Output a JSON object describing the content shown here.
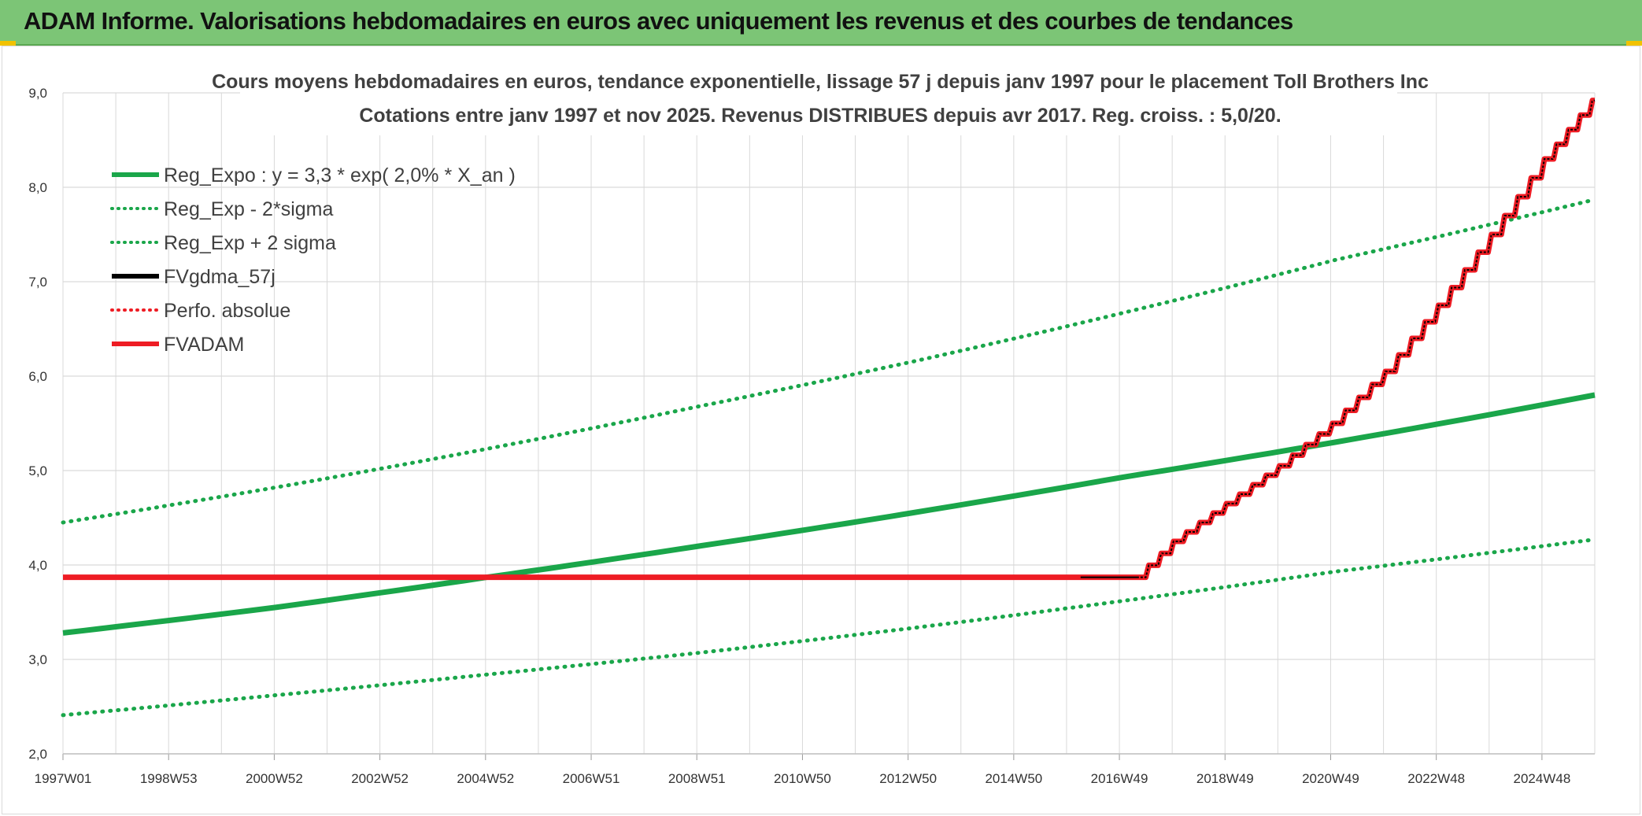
{
  "header": {
    "title": "ADAM Informe. Valorisations hebdomadaires en euros avec uniquement les revenus et des courbes de tendances"
  },
  "colors": {
    "banner": "#7cc576",
    "green": "#1aa64a",
    "red": "#ee1c24",
    "black": "#000000",
    "grid": "#d9d9d9"
  },
  "chart_data": {
    "type": "line",
    "title_line1": "Cours moyens hebdomadaires en euros, tendance exponentielle, lissage 57 j depuis janv 1997 pour le placement Toll Brothers Inc",
    "title_line2": "Cotations entre janv 1997 et nov 2025. Revenus DISTRIBUES depuis avr 2017. Reg. croiss. : 5,0/20.",
    "xlabel": "",
    "ylabel": "",
    "xlim": [
      1997.0,
      2025.9
    ],
    "ylim": [
      2.0,
      9.0
    ],
    "y_ticks": [
      "2,0",
      "3,0",
      "4,0",
      "5,0",
      "6,0",
      "7,0",
      "8,0",
      "9,0"
    ],
    "x_tick_labels": [
      "1997W01",
      "1998W53",
      "2000W52",
      "2002W52",
      "2004W52",
      "2006W51",
      "2008W51",
      "2010W50",
      "2012W50",
      "2014W50",
      "2016W49",
      "2018W49",
      "2020W49",
      "2022W48",
      "2024W48"
    ],
    "legend": [
      {
        "label": "Reg_Expo : y = 3,3 * exp( 2,0% *  X_an )",
        "color": "#1aa64a",
        "style": "solid"
      },
      {
        "label": "Reg_Exp - 2*sigma",
        "color": "#1aa64a",
        "style": "dotted"
      },
      {
        "label": "Reg_Exp + 2 sigma",
        "color": "#1aa64a",
        "style": "dotted"
      },
      {
        "label": "FVgdma_57j",
        "color": "#000000",
        "style": "solid"
      },
      {
        "label": "Perfo. absolue",
        "color": "#ee1c24",
        "style": "dotted"
      },
      {
        "label": "FVADAM",
        "color": "#ee1c24",
        "style": "solid"
      }
    ],
    "series": [
      {
        "name": "Reg_Expo",
        "x": [
          1997.0,
          2001.0,
          2005.0,
          2009.0,
          2013.0,
          2017.0,
          2021.0,
          2025.9
        ],
        "values": [
          3.28,
          3.55,
          3.87,
          4.2,
          4.55,
          4.93,
          5.3,
          5.8
        ]
      },
      {
        "name": "Reg_Exp - 2*sigma",
        "x": [
          1997.0,
          2001.0,
          2005.0,
          2009.0,
          2013.0,
          2017.0,
          2021.0,
          2025.9
        ],
        "values": [
          2.41,
          2.62,
          2.84,
          3.07,
          3.33,
          3.62,
          3.93,
          4.27
        ]
      },
      {
        "name": "Reg_Exp + 2 sigma",
        "x": [
          1997.0,
          2001.0,
          2005.0,
          2009.0,
          2013.0,
          2017.0,
          2021.0,
          2025.9
        ],
        "values": [
          4.45,
          4.82,
          5.23,
          5.68,
          6.15,
          6.67,
          7.23,
          7.87
        ]
      },
      {
        "name": "FVgdma_57j",
        "x": [
          2016.2,
          2017.3,
          2018.0,
          2019.0,
          2020.0,
          2021.0,
          2022.0,
          2023.0,
          2024.0,
          2025.0,
          2025.9
        ],
        "values": [
          3.87,
          3.87,
          4.25,
          4.65,
          5.05,
          5.5,
          6.05,
          6.75,
          7.5,
          8.3,
          8.92
        ]
      },
      {
        "name": "FVADAM",
        "x": [
          1997.0,
          2016.2,
          2017.3,
          2018.0,
          2019.0,
          2020.0,
          2021.0,
          2022.0,
          2023.0,
          2024.0,
          2025.0,
          2025.9
        ],
        "values": [
          3.87,
          3.87,
          3.87,
          4.25,
          4.65,
          5.05,
          5.5,
          6.05,
          6.75,
          7.5,
          8.3,
          8.92
        ]
      }
    ]
  }
}
